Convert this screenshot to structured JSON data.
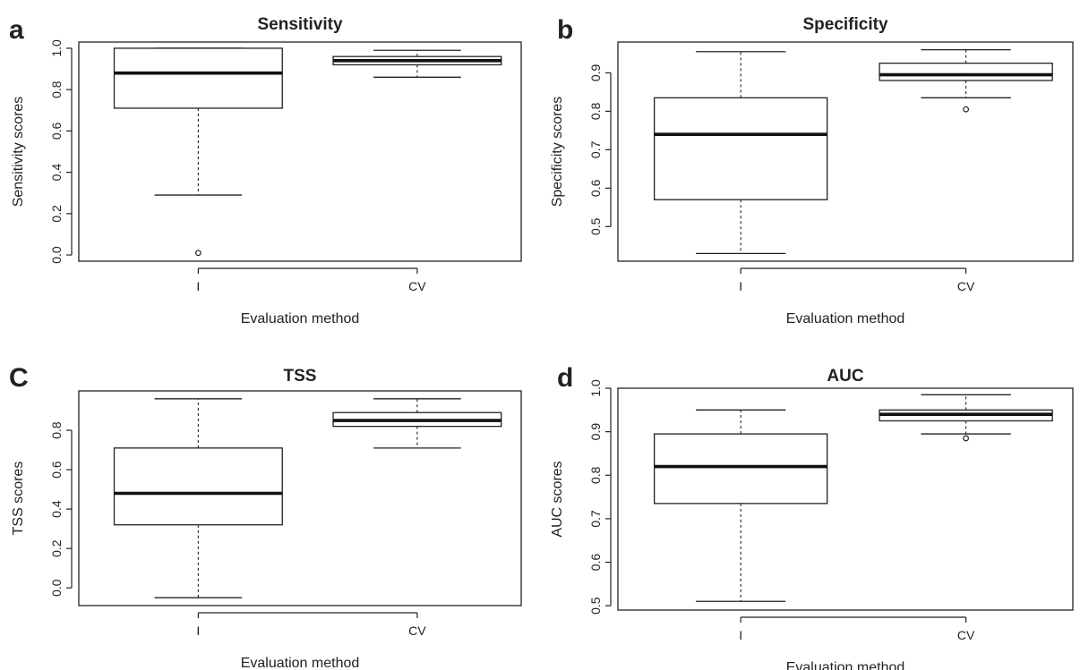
{
  "chart_data": [
    {
      "type": "boxplot",
      "letter": "a",
      "title": "Sensitivity",
      "xlabel": "Evaluation method",
      "ylabel": "Sensitivity scores",
      "ylim": [
        -0.03,
        1.03
      ],
      "yticks": [
        "0.0",
        "0.2",
        "0.4",
        "0.6",
        "0.8",
        "1.0"
      ],
      "categories": [
        "I",
        "CV"
      ],
      "boxes": [
        {
          "name": "I",
          "whisker_low": 0.29,
          "q1": 0.71,
          "median": 0.88,
          "q3": 1.0,
          "whisker_high": 1.0,
          "outliers": [
            0.01
          ]
        },
        {
          "name": "CV",
          "whisker_low": 0.86,
          "q1": 0.92,
          "median": 0.94,
          "q3": 0.96,
          "whisker_high": 0.99,
          "outliers": []
        }
      ]
    },
    {
      "type": "boxplot",
      "letter": "b",
      "title": "Specificity",
      "xlabel": "Evaluation method",
      "ylabel": "Specificity scores",
      "ylim": [
        0.41,
        0.98
      ],
      "yticks": [
        "0.5",
        "0.6",
        "0.7",
        "0.8",
        "0.9"
      ],
      "categories": [
        "I",
        "CV"
      ],
      "boxes": [
        {
          "name": "I",
          "whisker_low": 0.43,
          "q1": 0.57,
          "median": 0.74,
          "q3": 0.835,
          "whisker_high": 0.955,
          "outliers": []
        },
        {
          "name": "CV",
          "whisker_low": 0.835,
          "q1": 0.88,
          "median": 0.895,
          "q3": 0.925,
          "whisker_high": 0.96,
          "outliers": [
            0.805
          ]
        }
      ]
    },
    {
      "type": "boxplot",
      "letter": "C",
      "title": "TSS",
      "xlabel": "Evaluation method",
      "ylabel": "TSS scores",
      "ylim": [
        -0.09,
        1.0
      ],
      "yticks": [
        "0.0",
        "0.2",
        "0.4",
        "0.6",
        "0.8"
      ],
      "categories": [
        "I",
        "CV"
      ],
      "boxes": [
        {
          "name": "I",
          "whisker_low": -0.05,
          "q1": 0.32,
          "median": 0.48,
          "q3": 0.71,
          "whisker_high": 0.96,
          "outliers": []
        },
        {
          "name": "CV",
          "whisker_low": 0.71,
          "q1": 0.82,
          "median": 0.85,
          "q3": 0.89,
          "whisker_high": 0.96,
          "outliers": []
        }
      ]
    },
    {
      "type": "boxplot",
      "letter": "d",
      "title": "AUC",
      "xlabel": "Evaluation method",
      "ylabel": "AUC scores",
      "ylim": [
        0.49,
        1.0
      ],
      "yticks": [
        "0.5",
        "0.6",
        "0.7",
        "0.8",
        "0.9",
        "1.0"
      ],
      "categories": [
        "I",
        "CV"
      ],
      "boxes": [
        {
          "name": "I",
          "whisker_low": 0.51,
          "q1": 0.735,
          "median": 0.82,
          "q3": 0.895,
          "whisker_high": 0.95,
          "outliers": []
        },
        {
          "name": "CV",
          "whisker_low": 0.895,
          "q1": 0.925,
          "median": 0.94,
          "q3": 0.95,
          "whisker_high": 0.985,
          "outliers": [
            0.885
          ]
        }
      ]
    }
  ]
}
